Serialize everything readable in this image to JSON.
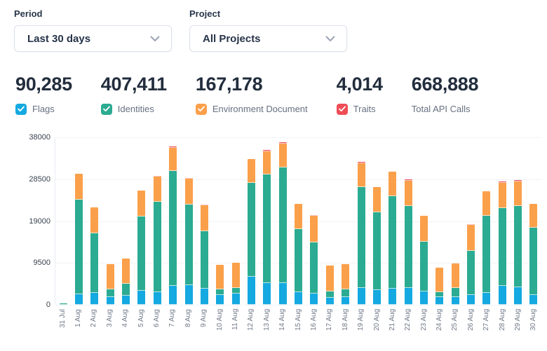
{
  "filters": {
    "period": {
      "label": "Period",
      "value": "Last 30 days"
    },
    "project": {
      "label": "Project",
      "value": "All Projects"
    }
  },
  "colors": {
    "flags": "#14a9e0",
    "identities": "#2bab92",
    "environment_document": "#fba04a",
    "traits": "#ef4d56"
  },
  "stats": [
    {
      "value": "90,285",
      "label": "Flags",
      "checkbox": true,
      "checked": true,
      "color": "#14a9e0"
    },
    {
      "value": "407,411",
      "label": "Identities",
      "checkbox": true,
      "checked": true,
      "color": "#2bab92"
    },
    {
      "value": "167,178",
      "label": "Environment Document",
      "checkbox": true,
      "checked": true,
      "color": "#fba04a"
    },
    {
      "value": "4,014",
      "label": "Traits",
      "checkbox": true,
      "checked": true,
      "color": "#ef4d56"
    },
    {
      "value": "668,888",
      "label": "Total API Calls",
      "checkbox": false,
      "checked": false,
      "color": null
    }
  ],
  "chart_data": {
    "type": "bar",
    "stacked": true,
    "title": "",
    "xlabel": "",
    "ylabel": "",
    "ylim": [
      0,
      38000
    ],
    "yticks": [
      0,
      9500,
      19000,
      28500,
      38000
    ],
    "grid": true,
    "legend_position": "none",
    "categories": [
      "31 Jul",
      "1 Aug",
      "2 Aug",
      "3 Aug",
      "4 Aug",
      "5 Aug",
      "6 Aug",
      "7 Aug",
      "8 Aug",
      "9 Aug",
      "10 Aug",
      "11 Aug",
      "12 Aug",
      "13 Aug",
      "14 Aug",
      "15 Aug",
      "16 Aug",
      "17 Aug",
      "18 Aug",
      "19 Aug",
      "20 Aug",
      "21 Aug",
      "22 Aug",
      "23 Aug",
      "24 Aug",
      "25 Aug",
      "26 Aug",
      "27 Aug",
      "28 Aug",
      "29 Aug",
      "30 Aug"
    ],
    "series": [
      {
        "name": "Flags",
        "color": "#14a9e0",
        "values": [
          0,
          2400,
          2650,
          1700,
          2000,
          3150,
          2850,
          4250,
          4500,
          3700,
          2300,
          2500,
          6300,
          4900,
          5000,
          2800,
          2550,
          1600,
          1700,
          3850,
          3300,
          3700,
          3850,
          3050,
          1700,
          1800,
          2250,
          2700,
          4250,
          4000,
          2200
        ]
      },
      {
        "name": "Identities",
        "color": "#2bab92",
        "values": [
          250,
          21500,
          13500,
          1750,
          2750,
          16900,
          20550,
          26050,
          18250,
          13000,
          1150,
          1350,
          21350,
          24600,
          26150,
          14450,
          11650,
          1450,
          1750,
          22800,
          17750,
          20900,
          18500,
          11200,
          1100,
          2000,
          9950,
          17550,
          17750,
          18400,
          15250
        ]
      },
      {
        "name": "Environment Document",
        "color": "#fba04a",
        "values": [
          0,
          5900,
          5950,
          5800,
          5700,
          5900,
          5700,
          5250,
          5950,
          5950,
          5650,
          5650,
          5400,
          5350,
          5400,
          5650,
          5950,
          5800,
          5700,
          5500,
          5700,
          5600,
          5750,
          5900,
          5600,
          5550,
          5900,
          5550,
          5700,
          5550,
          5500
        ]
      },
      {
        "name": "Traits",
        "color": "#ef4d56",
        "values": [
          0,
          60,
          50,
          30,
          40,
          60,
          220,
          280,
          230,
          180,
          60,
          70,
          80,
          240,
          260,
          60,
          180,
          30,
          40,
          270,
          70,
          80,
          250,
          60,
          40,
          50,
          180,
          70,
          280,
          270,
          60
        ]
      }
    ]
  }
}
